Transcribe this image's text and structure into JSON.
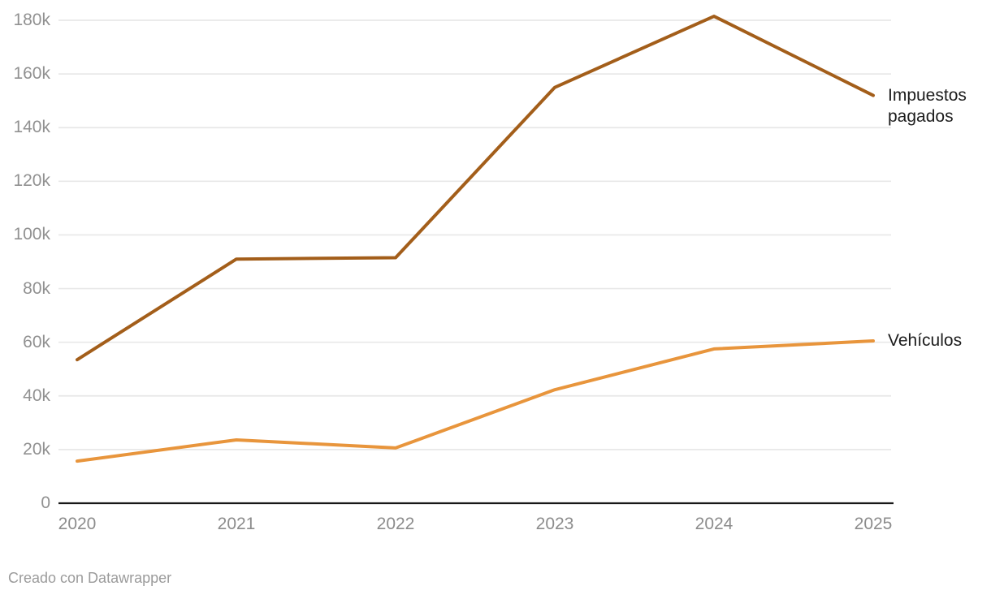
{
  "chart_data": {
    "type": "line",
    "x": [
      2020,
      2021,
      2022,
      2023,
      2024,
      2025
    ],
    "xtick_labels": [
      "2020",
      "2021",
      "2022",
      "2023",
      "2024",
      "2025"
    ],
    "series": [
      {
        "name": "Impuestos pagados",
        "id": "impuestos-pagados",
        "label_lines": [
          "Impuestos",
          "pagados"
        ],
        "color": "#A35E1A",
        "values": [
          53500,
          91000,
          91500,
          155000,
          181500,
          152000
        ]
      },
      {
        "name": "Vehículos",
        "id": "vehiculos",
        "label_lines": [
          "Vehículos"
        ],
        "color": "#E8953C",
        "values": [
          15700,
          23600,
          20600,
          42300,
          57500,
          60500
        ]
      }
    ],
    "yticks": [
      {
        "value": 0,
        "label": "0"
      },
      {
        "value": 20000,
        "label": "20k"
      },
      {
        "value": 40000,
        "label": "40k"
      },
      {
        "value": 60000,
        "label": "60k"
      },
      {
        "value": 80000,
        "label": "80k"
      },
      {
        "value": 100000,
        "label": "100k"
      },
      {
        "value": 120000,
        "label": "120k"
      },
      {
        "value": 140000,
        "label": "140k"
      },
      {
        "value": 160000,
        "label": "160k"
      },
      {
        "value": 180000,
        "label": "180k"
      }
    ],
    "ylim": [
      0,
      180000
    ],
    "grid": true,
    "legend_position": "direct-right"
  },
  "colors": {
    "grid": "#E8E8E8",
    "axis": "#181818",
    "ytick_text": "#919191",
    "xtick_text": "#8c8c8c",
    "series_label_text": "#1d1d1d",
    "background": "#FFFFFF"
  },
  "footer": {
    "attribution": "Creado con Datawrapper"
  }
}
